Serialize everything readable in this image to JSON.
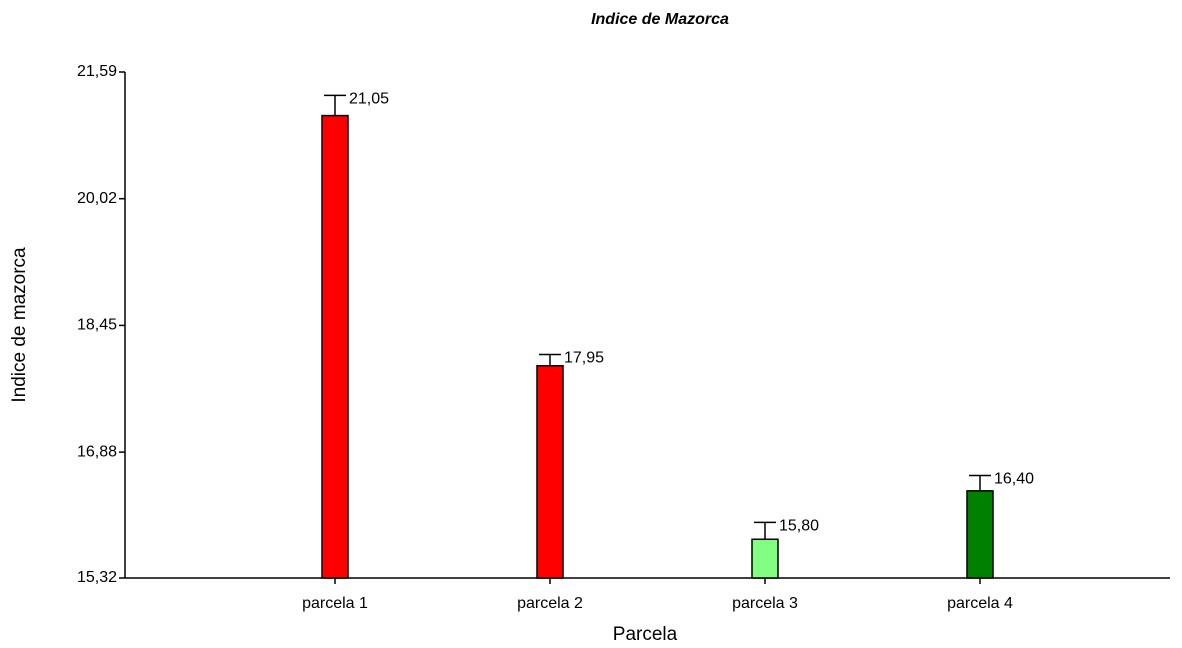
{
  "chart_data": {
    "type": "bar",
    "title": "Indice de Mazorca",
    "x_label": "Parcela",
    "y_label": "Indice de mazorca",
    "categories": [
      "parcela 1",
      "parcela 2",
      "parcela 3",
      "parcela 4"
    ],
    "values": [
      21.05,
      17.95,
      15.8,
      16.4
    ],
    "value_labels": [
      "21,05",
      "17,95",
      "15,80",
      "16,40"
    ],
    "errors": [
      0.25,
      0.14,
      0.21,
      0.19
    ],
    "colors": [
      "#ff0000",
      "#ff0000",
      "#80ff80",
      "#008000"
    ],
    "ylim": [
      15.32,
      21.59
    ],
    "yticks": [
      {
        "value": 15.32,
        "label": "15,32"
      },
      {
        "value": 16.88,
        "label": "16,88"
      },
      {
        "value": 18.45,
        "label": "18,45"
      },
      {
        "value": 20.02,
        "label": "20,02"
      },
      {
        "value": 21.59,
        "label": "21,59"
      }
    ]
  }
}
